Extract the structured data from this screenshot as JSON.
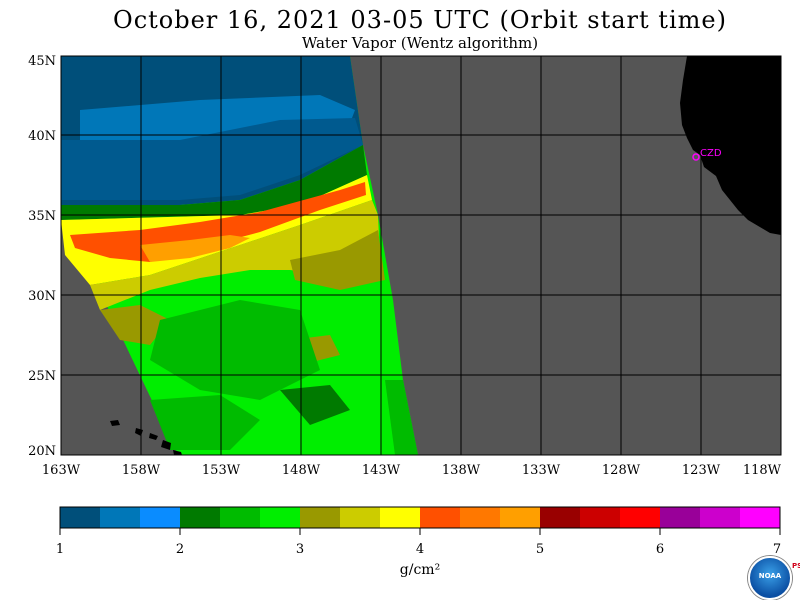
{
  "header": {
    "title": "October 16, 2021  03-05 UTC  (Orbit start time)",
    "subtitle": "Water Vapor (Wentz algorithm)"
  },
  "map": {
    "lat_labels": [
      "45N",
      "40N",
      "35N",
      "30N",
      "25N",
      "20N"
    ],
    "lon_labels": [
      "163W",
      "158W",
      "153W",
      "148W",
      "143W",
      "138W",
      "133W",
      "128W",
      "123W",
      "118W"
    ],
    "station_label": "CZD",
    "colors": {
      "land": "#000000",
      "no_data": "#555555",
      "grid": "#000000",
      "station": "#ff00ff"
    }
  },
  "colorbar": {
    "colors": [
      "#004f7a",
      "#0077b8",
      "#0a8cff",
      "#007a00",
      "#00bb00",
      "#00ee00",
      "#999900",
      "#cccc00",
      "#ffff00",
      "#ff5000",
      "#ff7800",
      "#ff9f00",
      "#990000",
      "#cc0000",
      "#ff0000",
      "#990099",
      "#cc00cc",
      "#ff00ff"
    ],
    "tick_labels": [
      "1",
      "2",
      "3",
      "4",
      "5",
      "6",
      "7"
    ],
    "unit": "g/cm²"
  },
  "logo": {
    "text": "NOAA",
    "side_text": "PSL"
  }
}
